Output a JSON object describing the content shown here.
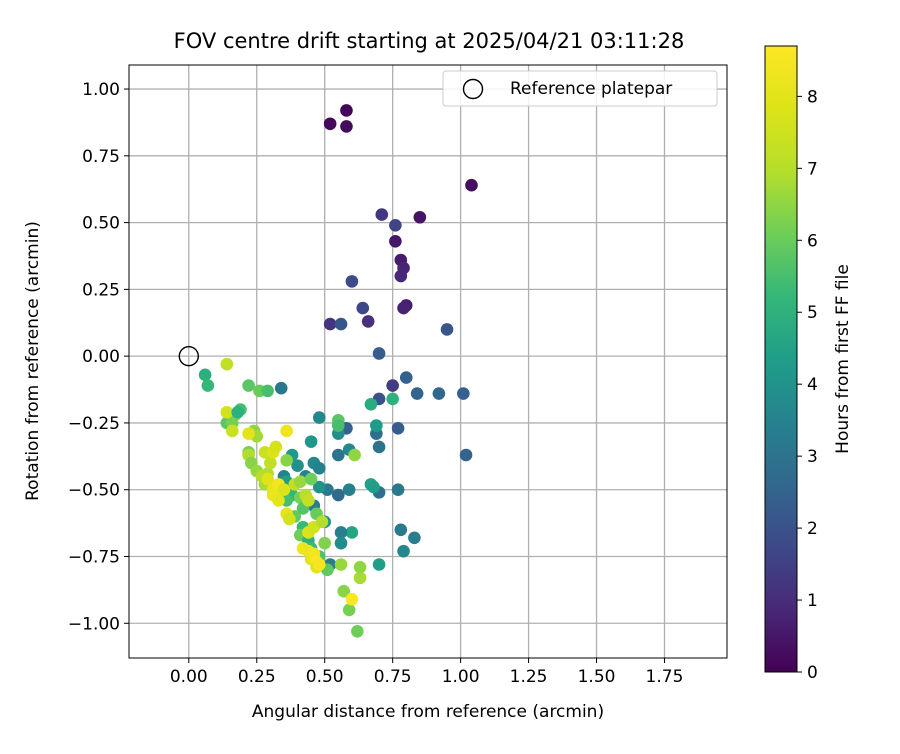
{
  "chart_data": {
    "type": "scatter",
    "title": "FOV centre drift starting at 2025/04/21 03:11:28",
    "xlabel": "Angular distance from reference (arcmin)",
    "ylabel": "Rotation from reference (arcmin)",
    "xlim": [
      -0.22,
      1.98
    ],
    "ylim": [
      -1.13,
      1.09
    ],
    "xticks": [
      0.0,
      0.25,
      0.5,
      0.75,
      1.0,
      1.25,
      1.5,
      1.75
    ],
    "xtick_labels": [
      "0.00",
      "0.25",
      "0.50",
      "0.75",
      "1.00",
      "1.25",
      "1.50",
      "1.75"
    ],
    "yticks": [
      -1.0,
      -0.75,
      -0.5,
      -0.25,
      0.0,
      0.25,
      0.5,
      0.75,
      1.0
    ],
    "ytick_labels": [
      "−1.00",
      "−0.75",
      "−0.50",
      "−0.25",
      "0.00",
      "0.25",
      "0.50",
      "0.75",
      "1.00"
    ],
    "grid": true,
    "legend": {
      "placement": "top-right",
      "entries": [
        "Reference platepar"
      ]
    },
    "reference_point": {
      "name": "Reference platepar",
      "x": 0.0,
      "y": 0.0
    },
    "colorbar": {
      "label": "Hours from first FF file",
      "colormap": "viridis",
      "range": [
        0,
        8.7
      ],
      "ticks": [
        0,
        1,
        2,
        3,
        4,
        5,
        6,
        7,
        8
      ],
      "tick_labels": [
        "0",
        "1",
        "2",
        "3",
        "4",
        "5",
        "6",
        "7",
        "8"
      ]
    },
    "points": [
      [
        0.58,
        0.92,
        0.1
      ],
      [
        0.52,
        0.87,
        0.15
      ],
      [
        0.58,
        0.86,
        0.2
      ],
      [
        1.04,
        0.64,
        0.3
      ],
      [
        0.85,
        0.52,
        0.4
      ],
      [
        0.76,
        0.43,
        0.5
      ],
      [
        0.78,
        0.36,
        0.6
      ],
      [
        0.79,
        0.33,
        0.8
      ],
      [
        0.78,
        0.3,
        0.9
      ],
      [
        0.8,
        0.19,
        0.7
      ],
      [
        0.79,
        0.18,
        0.75
      ],
      [
        0.71,
        0.53,
        1.3
      ],
      [
        0.76,
        0.49,
        1.6
      ],
      [
        0.6,
        0.28,
        1.8
      ],
      [
        0.64,
        0.18,
        1.7
      ],
      [
        0.52,
        0.12,
        1.2
      ],
      [
        0.66,
        0.13,
        1.1
      ],
      [
        0.56,
        0.12,
        2.1
      ],
      [
        0.95,
        0.1,
        2.1
      ],
      [
        0.7,
        0.01,
        2.3
      ],
      [
        0.8,
        -0.08,
        2.4
      ],
      [
        0.75,
        -0.11,
        1.4
      ],
      [
        0.7,
        -0.16,
        2.0
      ],
      [
        0.84,
        -0.14,
        2.5
      ],
      [
        0.92,
        -0.14,
        2.6
      ],
      [
        1.01,
        -0.14,
        2.4
      ],
      [
        1.02,
        -0.37,
        2.5
      ],
      [
        0.77,
        -0.27,
        2.3
      ],
      [
        0.58,
        -0.27,
        2.4
      ],
      [
        0.69,
        -0.29,
        2.9
      ],
      [
        0.7,
        -0.34,
        3.0
      ],
      [
        0.7,
        -0.51,
        2.8
      ],
      [
        0.77,
        -0.5,
        3.1
      ],
      [
        0.78,
        -0.65,
        3.2
      ],
      [
        0.83,
        -0.68,
        3.3
      ],
      [
        0.79,
        -0.73,
        3.6
      ],
      [
        0.7,
        -0.78,
        4.4
      ],
      [
        0.6,
        -0.66,
        4.6
      ],
      [
        0.56,
        -0.66,
        3.4
      ],
      [
        0.56,
        -0.7,
        3.8
      ],
      [
        0.59,
        -0.5,
        3.4
      ],
      [
        0.55,
        -0.52,
        2.7
      ],
      [
        0.51,
        -0.5,
        3.2
      ],
      [
        0.48,
        -0.49,
        4.0
      ],
      [
        0.5,
        -0.62,
        4.0
      ],
      [
        0.46,
        -0.56,
        3.3
      ],
      [
        0.55,
        -0.37,
        3.0
      ],
      [
        0.59,
        -0.35,
        3.7
      ],
      [
        0.55,
        -0.29,
        3.9
      ],
      [
        0.48,
        -0.23,
        3.6
      ],
      [
        0.45,
        -0.32,
        4.1
      ],
      [
        0.46,
        -0.4,
        3.7
      ],
      [
        0.48,
        -0.42,
        3.4
      ],
      [
        0.43,
        -0.45,
        3.5
      ],
      [
        0.4,
        -0.41,
        3.9
      ],
      [
        0.38,
        -0.37,
        4.2
      ],
      [
        0.35,
        -0.45,
        3.5
      ],
      [
        0.34,
        -0.12,
        3.1
      ],
      [
        0.48,
        -0.78,
        3.8
      ],
      [
        0.52,
        -0.78,
        3.3
      ],
      [
        0.69,
        -0.26,
        4.3
      ],
      [
        0.67,
        -0.18,
        4.8
      ],
      [
        0.75,
        -0.16,
        5.0
      ],
      [
        0.67,
        -0.48,
        4.5
      ],
      [
        0.68,
        -0.49,
        4.4
      ],
      [
        0.55,
        -0.24,
        5.8
      ],
      [
        0.55,
        -0.26,
        5.5
      ],
      [
        0.61,
        -0.37,
        6.5
      ],
      [
        0.36,
        -0.47,
        4.4
      ],
      [
        0.38,
        -0.52,
        5.2
      ],
      [
        0.36,
        -0.54,
        5.5
      ],
      [
        0.41,
        -0.53,
        6.2
      ],
      [
        0.42,
        -0.57,
        5.7
      ],
      [
        0.39,
        -0.6,
        5.9
      ],
      [
        0.42,
        -0.64,
        5.3
      ],
      [
        0.41,
        -0.67,
        6.1
      ],
      [
        0.44,
        -0.69,
        5.0
      ],
      [
        0.45,
        -0.72,
        5.3
      ],
      [
        0.47,
        -0.59,
        6.0
      ],
      [
        0.5,
        -0.7,
        6.3
      ],
      [
        0.48,
        -0.75,
        5.6
      ],
      [
        0.51,
        -0.8,
        5.9
      ],
      [
        0.56,
        -0.78,
        6.6
      ],
      [
        0.57,
        -0.88,
        6.4
      ],
      [
        0.59,
        -0.95,
        6.2
      ],
      [
        0.62,
        -1.03,
        6.1
      ],
      [
        0.63,
        -0.83,
        6.8
      ],
      [
        0.63,
        -0.79,
        6.5
      ],
      [
        0.06,
        -0.07,
        4.9
      ],
      [
        0.07,
        -0.11,
        5.2
      ],
      [
        0.22,
        -0.11,
        5.8
      ],
      [
        0.26,
        -0.13,
        6.0
      ],
      [
        0.29,
        -0.13,
        5.5
      ],
      [
        0.19,
        -0.2,
        5.5
      ],
      [
        0.17,
        -0.22,
        6.3
      ],
      [
        0.14,
        -0.25,
        5.8
      ],
      [
        0.16,
        -0.25,
        6.2
      ],
      [
        0.22,
        -0.36,
        6.2
      ],
      [
        0.24,
        -0.28,
        6.5
      ],
      [
        0.25,
        -0.3,
        6.7
      ],
      [
        0.22,
        -0.37,
        6.9
      ],
      [
        0.23,
        -0.4,
        6.4
      ],
      [
        0.25,
        -0.43,
        6.6
      ],
      [
        0.27,
        -0.45,
        7.0
      ],
      [
        0.28,
        -0.48,
        6.8
      ],
      [
        0.29,
        -0.44,
        6.9
      ],
      [
        0.3,
        -0.4,
        7.2
      ],
      [
        0.28,
        -0.36,
        7.4
      ],
      [
        0.14,
        -0.21,
        7.6
      ],
      [
        0.16,
        -0.28,
        7.4
      ],
      [
        0.14,
        -0.03,
        7.2
      ],
      [
        0.22,
        -0.29,
        8.0
      ],
      [
        0.31,
        -0.36,
        7.8
      ],
      [
        0.32,
        -0.34,
        7.7
      ],
      [
        0.36,
        -0.28,
        8.3
      ],
      [
        0.29,
        -0.46,
        7.9
      ],
      [
        0.31,
        -0.5,
        8.1
      ],
      [
        0.33,
        -0.48,
        8.4
      ],
      [
        0.31,
        -0.52,
        8.2
      ],
      [
        0.33,
        -0.54,
        8.0
      ],
      [
        0.35,
        -0.5,
        7.8
      ],
      [
        0.36,
        -0.59,
        8.1
      ],
      [
        0.37,
        -0.61,
        7.6
      ],
      [
        0.39,
        -0.48,
        7.2
      ],
      [
        0.41,
        -0.47,
        6.6
      ],
      [
        0.43,
        -0.52,
        7.0
      ],
      [
        0.44,
        -0.54,
        7.3
      ],
      [
        0.42,
        -0.72,
        8.3
      ],
      [
        0.44,
        -0.73,
        8.2
      ],
      [
        0.45,
        -0.76,
        8.0
      ],
      [
        0.46,
        -0.74,
        8.4
      ],
      [
        0.47,
        -0.77,
        8.6
      ],
      [
        0.47,
        -0.79,
        7.9
      ],
      [
        0.48,
        -0.78,
        8.5
      ],
      [
        0.44,
        -0.66,
        7.8
      ],
      [
        0.46,
        -0.64,
        7.6
      ],
      [
        0.49,
        -0.62,
        7.0
      ],
      [
        0.6,
        -0.91,
        8.6
      ],
      [
        0.45,
        -0.46,
        6.1
      ],
      [
        0.36,
        -0.39,
        6.4
      ],
      [
        0.18,
        -0.21,
        5.0
      ]
    ]
  }
}
